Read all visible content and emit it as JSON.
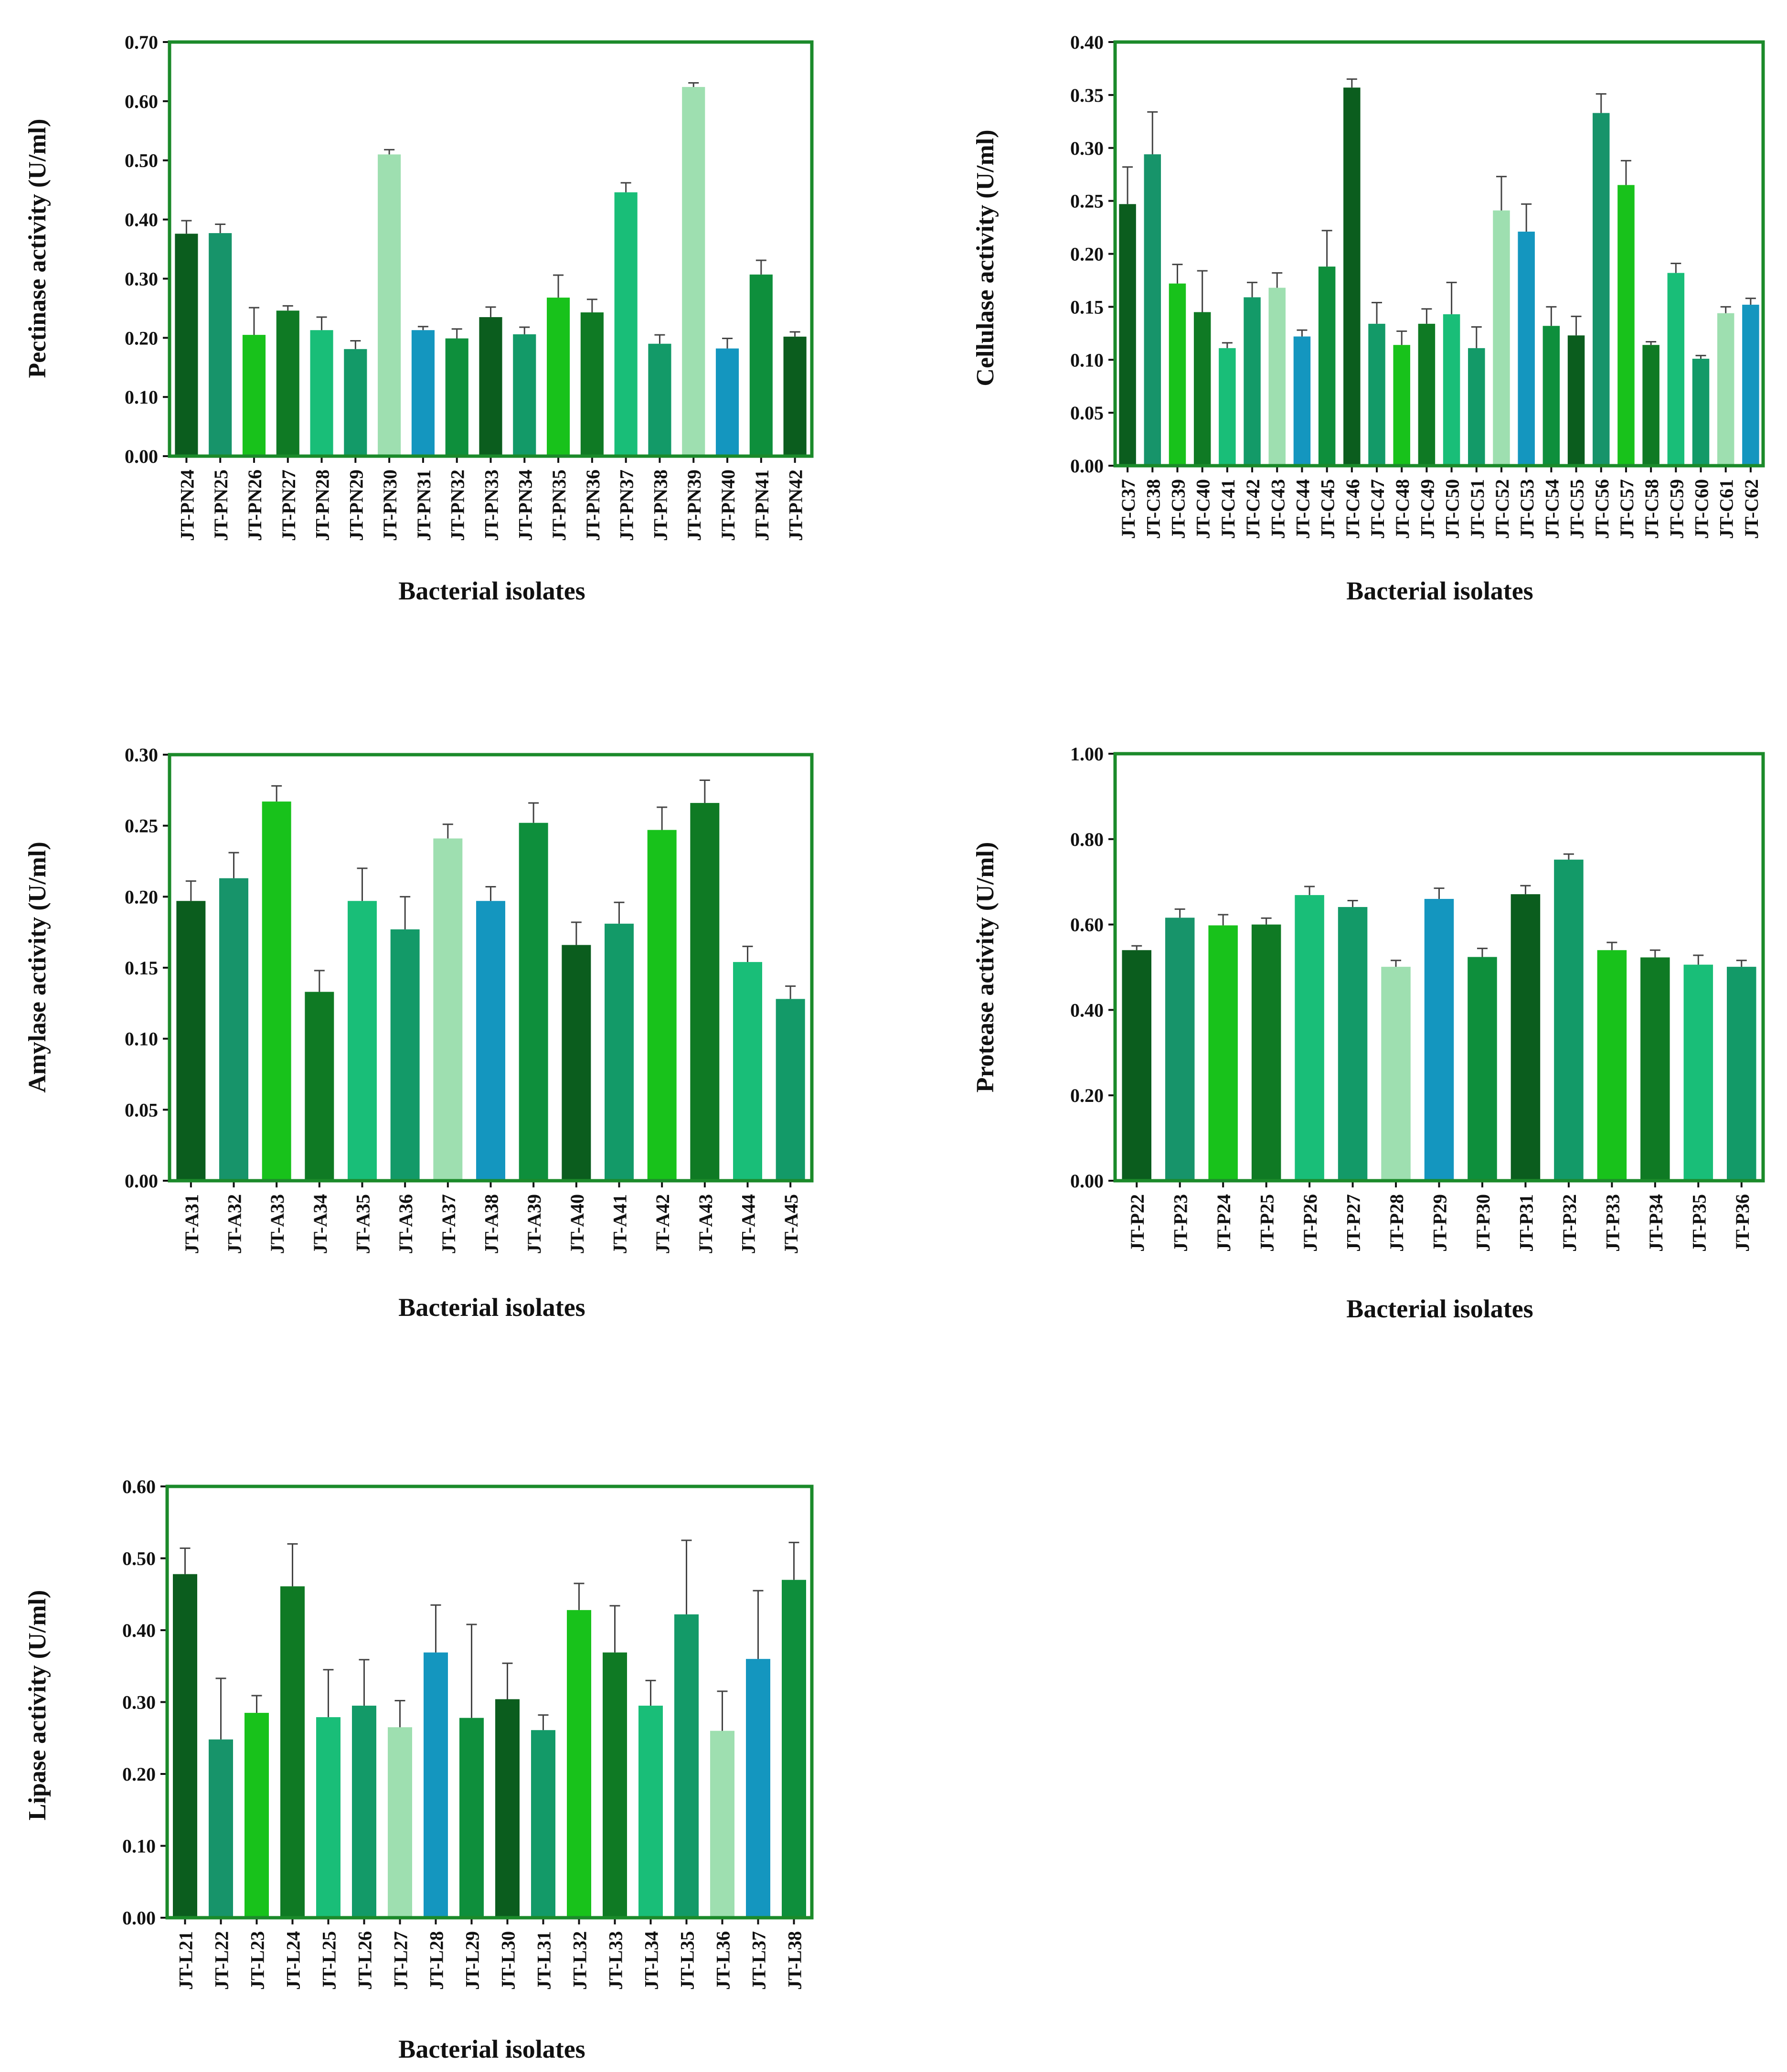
{
  "colors": {
    "frame": "#1b8a2a",
    "axis": "#111111",
    "errorbar": "#444444",
    "palette": [
      "#0b5d1e",
      "#17946a",
      "#18c21b",
      "#0f7a24",
      "#19be78",
      "#139a68",
      "#9edfb0",
      "#1496bf",
      "#0e8f3c"
    ]
  },
  "chart_data": [
    {
      "type": "bar",
      "ylabel": "Pectinase  activity (U/ml)",
      "xlabel": "Bacterial isolates",
      "ylim": [
        0,
        0.7
      ],
      "yticks": [
        "0.00",
        "0.10",
        "0.20",
        "0.30",
        "0.40",
        "0.50",
        "0.60",
        "0.70"
      ],
      "categories": [
        "JT-PN24",
        "JT-PN25",
        "JT-PN26",
        "JT-PN27",
        "JT-PN28",
        "JT-PN29",
        "JT-PN30",
        "JT-PN31",
        "JT-PN32",
        "JT-PN33",
        "JT-PN34",
        "JT-PN35",
        "JT-PN36",
        "JT-PN37",
        "JT-PN38",
        "JT-PN39",
        "JT-PN40",
        "JT-PN41",
        "JT-PN42"
      ],
      "values": [
        0.376,
        0.377,
        0.205,
        0.246,
        0.213,
        0.181,
        0.51,
        0.213,
        0.199,
        0.235,
        0.206,
        0.268,
        0.243,
        0.446,
        0.19,
        0.624,
        0.182,
        0.307,
        0.202
      ],
      "errors": [
        0.022,
        0.015,
        0.046,
        0.008,
        0.022,
        0.014,
        0.008,
        0.006,
        0.016,
        0.017,
        0.012,
        0.038,
        0.022,
        0.016,
        0.015,
        0.007,
        0.017,
        0.024,
        0.008
      ],
      "colors": [
        0,
        1,
        2,
        3,
        4,
        5,
        6,
        7,
        8,
        0,
        5,
        2,
        3,
        4,
        5,
        6,
        7,
        8,
        0
      ]
    },
    {
      "type": "bar",
      "ylabel": "Cellulase activity (U/ml)",
      "xlabel": "Bacterial isolates",
      "ylim": [
        0,
        0.4
      ],
      "yticks": [
        "0.00",
        "0.05",
        "0.10",
        "0.15",
        "0.20",
        "0.25",
        "0.30",
        "0.35",
        "0.40"
      ],
      "categories": [
        "JT-C37",
        "JT-C38",
        "JT-C39",
        "JT-C40",
        "JT-C41",
        "JT-C42",
        "JT-C43",
        "JT-C44",
        "JT-C45",
        "JT-C46",
        "JT-C47",
        "JT-C48",
        "JT-C49",
        "JT-C50",
        "JT-C51",
        "JT-C52",
        "JT-C53",
        "JT-C54",
        "JT-C55",
        "JT-C56",
        "JT-C57",
        "JT-C58",
        "JT-C59",
        "JT-C60",
        "JT-C61",
        "JT-C62"
      ],
      "values": [
        0.247,
        0.294,
        0.172,
        0.145,
        0.111,
        0.159,
        0.168,
        0.122,
        0.188,
        0.357,
        0.134,
        0.114,
        0.134,
        0.143,
        0.111,
        0.241,
        0.221,
        0.132,
        0.123,
        0.333,
        0.265,
        0.114,
        0.182,
        0.101,
        0.144,
        0.152
      ],
      "errors": [
        0.035,
        0.04,
        0.018,
        0.039,
        0.005,
        0.014,
        0.014,
        0.006,
        0.034,
        0.008,
        0.02,
        0.013,
        0.014,
        0.03,
        0.02,
        0.032,
        0.026,
        0.018,
        0.018,
        0.018,
        0.023,
        0.003,
        0.009,
        0.003,
        0.006,
        0.006
      ],
      "colors": [
        0,
        1,
        2,
        3,
        4,
        5,
        6,
        7,
        8,
        0,
        5,
        2,
        3,
        4,
        5,
        6,
        7,
        8,
        0,
        1,
        2,
        3,
        4,
        5,
        6,
        7
      ]
    },
    {
      "type": "bar",
      "ylabel": "Amylase activity (U/ml)",
      "xlabel": "Bacterial isolates",
      "ylim": [
        0,
        0.3
      ],
      "yticks": [
        "0.00",
        "0.05",
        "0.10",
        "0.15",
        "0.20",
        "0.25",
        "0.30"
      ],
      "categories": [
        "JT-A31",
        "JT-A32",
        "JT-A33",
        "JT-A34",
        "JT-A35",
        "JT-A36",
        "JT-A37",
        "JT-A38",
        "JT-A39",
        "JT-A40",
        "JT-A41",
        "JT-A42",
        "JT-A43",
        "JT-A44",
        "JT-A45"
      ],
      "values": [
        0.197,
        0.213,
        0.267,
        0.133,
        0.197,
        0.177,
        0.241,
        0.197,
        0.252,
        0.166,
        0.181,
        0.247,
        0.266,
        0.154,
        0.128
      ],
      "errors": [
        0.014,
        0.018,
        0.011,
        0.015,
        0.023,
        0.023,
        0.01,
        0.01,
        0.014,
        0.016,
        0.015,
        0.016,
        0.016,
        0.011,
        0.009
      ],
      "colors": [
        0,
        1,
        2,
        3,
        4,
        5,
        6,
        7,
        8,
        0,
        5,
        2,
        3,
        4,
        5
      ]
    },
    {
      "type": "bar",
      "ylabel": "Protease activity (U/ml)",
      "xlabel": "Bacterial isolates",
      "ylim": [
        0,
        1.0
      ],
      "yticks": [
        "0.00",
        "0.20",
        "0.40",
        "0.60",
        "0.80",
        "1.00"
      ],
      "categories": [
        "JT-P22",
        "JT-P23",
        "JT-P24",
        "JT-P25",
        "JT-P26",
        "JT-P27",
        "JT-P28",
        "JT-P29",
        "JT-P30",
        "JT-P31",
        "JT-P32",
        "JT-P33",
        "JT-P34",
        "JT-P35",
        "JT-P36"
      ],
      "values": [
        0.54,
        0.616,
        0.598,
        0.6,
        0.669,
        0.641,
        0.501,
        0.66,
        0.524,
        0.671,
        0.752,
        0.54,
        0.523,
        0.506,
        0.501
      ],
      "errors": [
        0.01,
        0.02,
        0.025,
        0.015,
        0.02,
        0.015,
        0.015,
        0.025,
        0.02,
        0.02,
        0.013,
        0.018,
        0.017,
        0.022,
        0.015
      ],
      "colors": [
        0,
        1,
        2,
        3,
        4,
        5,
        6,
        7,
        8,
        0,
        5,
        2,
        3,
        4,
        5
      ]
    },
    {
      "type": "bar",
      "ylabel": "Lipase activity (U/ml)",
      "xlabel": "Bacterial isolates",
      "ylim": [
        0,
        0.6
      ],
      "yticks": [
        "0.00",
        "0.10",
        "0.20",
        "0.30",
        "0.40",
        "0.50",
        "0.60"
      ],
      "categories": [
        "JT-L21",
        "JT-L22",
        "JT-L23",
        "JT-L24",
        "JT-L25",
        "JT-L26",
        "JT-L27",
        "JT-L28",
        "JT-L29",
        "JT-L30",
        "JT-L31",
        "JT-L32",
        "JT-L33",
        "JT-L34",
        "JT-L35",
        "JT-L36",
        "JT-L37",
        "JT-L38"
      ],
      "values": [
        0.478,
        0.248,
        0.285,
        0.461,
        0.279,
        0.295,
        0.265,
        0.369,
        0.278,
        0.304,
        0.261,
        0.428,
        0.369,
        0.295,
        0.422,
        0.26,
        0.36,
        0.47
      ],
      "errors": [
        0.036,
        0.085,
        0.024,
        0.059,
        0.066,
        0.064,
        0.037,
        0.066,
        0.13,
        0.05,
        0.021,
        0.037,
        0.065,
        0.035,
        0.103,
        0.055,
        0.095,
        0.052
      ],
      "colors": [
        0,
        1,
        2,
        3,
        4,
        5,
        6,
        7,
        8,
        0,
        5,
        2,
        3,
        4,
        5,
        6,
        7,
        8
      ]
    }
  ]
}
